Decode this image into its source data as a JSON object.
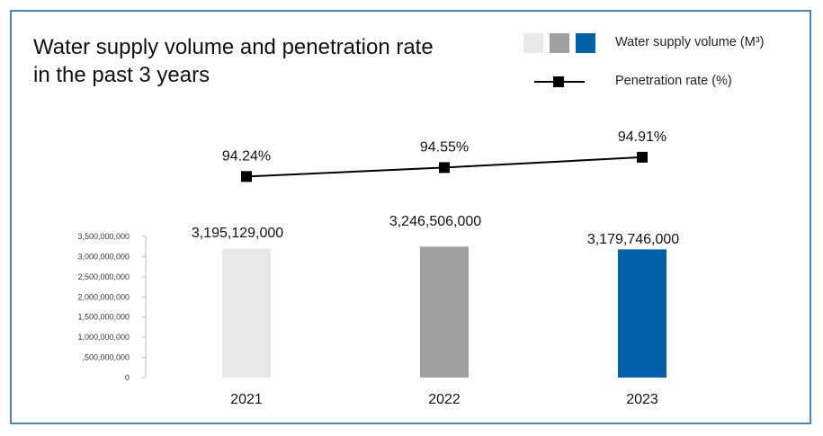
{
  "chart_data": {
    "type": "bar+line",
    "title": "Water supply volume and penetration rate in the past 3 years",
    "categories": [
      "2021",
      "2022",
      "2023"
    ],
    "series": [
      {
        "name": "Water supply volume (M³)",
        "kind": "bar",
        "values": [
          3195129000,
          3246506000,
          3179746000
        ],
        "labels": [
          "3,195,129,000",
          "3,246,506,000",
          "3,179,746,000"
        ],
        "colors": [
          "#e8e8e8",
          "#a0a0a0",
          "#0060aa"
        ]
      },
      {
        "name": "Penetration rate (%)",
        "kind": "line",
        "values": [
          94.24,
          94.55,
          94.91
        ],
        "labels": [
          "94.24%",
          "94.55%",
          "94.91%"
        ],
        "color": "#000000"
      }
    ],
    "y_ticks": [
      "3,500,000,000",
      "3,000,000,000",
      "2,500,000,000",
      "2,000,000,000",
      "1,500,000,000",
      "1,000,000,000",
      ",500,000,000",
      "0"
    ],
    "y_tick_values": [
      3500000000,
      3000000000,
      2500000000,
      2000000000,
      1500000000,
      1000000000,
      500000000,
      0
    ],
    "ylim": [
      0,
      3500000000
    ],
    "legend_position": "top-right"
  }
}
